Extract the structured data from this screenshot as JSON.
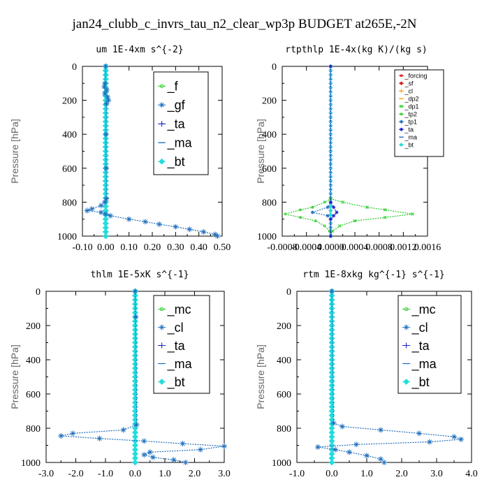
{
  "title": "jan24_clubb_c_invrs_tau_n2_clear_wp3p  BUDGET at265E,-2N",
  "colors": {
    "green": "#22cc22",
    "blue": "#1f6fbf",
    "navy": "#2222cc",
    "cyan": "#22dddd",
    "red": "#dd1111",
    "orange": "#ff9900",
    "olive": "#88aa22"
  },
  "chart_data": [
    {
      "type": "line",
      "title": "um  1E-4xm s^{-2}",
      "ylabel": "Pressure [hPa]",
      "xlim": [
        -0.1,
        0.5
      ],
      "ylim": [
        1000,
        0
      ],
      "xticks": [
        "-0.10",
        "0.00",
        "0.10",
        "0.20",
        "0.30",
        "0.40",
        "0.50"
      ],
      "yticks": [
        "0",
        "200",
        "400",
        "600",
        "800",
        "1000"
      ],
      "legend_position": "top-right",
      "series": [
        {
          "name": "_f",
          "color": "#22cc22",
          "marker": "circle",
          "y": [
            0,
            200,
            400,
            600,
            800,
            900,
            1000
          ],
          "x": [
            0,
            0,
            0,
            0,
            0,
            0,
            0
          ]
        },
        {
          "name": "_gf",
          "color": "#1f6fbf",
          "marker": "star",
          "y": [
            0,
            100,
            120,
            140,
            160,
            180,
            200,
            220,
            400,
            600,
            780,
            800,
            820,
            840,
            850,
            860,
            870,
            880,
            900,
            915,
            930,
            945,
            960,
            975,
            990,
            1000
          ],
          "x": [
            0,
            -0.003,
            -0.006,
            0.005,
            -0.004,
            0.008,
            0.012,
            0.003,
            0.001,
            0.002,
            0.003,
            -0.004,
            -0.02,
            -0.06,
            -0.08,
            -0.02,
            0.0,
            0.02,
            0.1,
            0.17,
            0.23,
            0.3,
            0.36,
            0.42,
            0.47,
            0.48
          ]
        },
        {
          "name": "_ta",
          "color": "#2222cc",
          "marker": "plus",
          "y": [
            0,
            200,
            400,
            600,
            800,
            1000
          ],
          "x": [
            0,
            0,
            0,
            0,
            0,
            0
          ]
        },
        {
          "name": "_ma",
          "color": "#1f6fbf",
          "marker": "dash",
          "y": [
            0,
            200,
            400,
            600,
            800,
            1000
          ],
          "x": [
            0,
            0,
            0,
            0,
            0,
            0
          ]
        },
        {
          "name": "_bt",
          "color": "#22dddd",
          "marker": "diamond",
          "y": [
            0,
            200,
            400,
            600,
            800,
            1000
          ],
          "x": [
            0,
            0,
            0,
            0,
            0,
            0
          ]
        }
      ]
    },
    {
      "type": "line",
      "title": "rtpthlp  1E-4x(kg K)/(kg s)",
      "ylabel": "Pressure [hPa]",
      "xlim": [
        -0.0008,
        0.0016
      ],
      "ylim": [
        1000,
        0
      ],
      "xticks": [
        "-0.0008",
        "-0.0004",
        "0.0000",
        "0.0004",
        "0.0008",
        "0.0012",
        "0.0016"
      ],
      "yticks": [
        "0",
        "200",
        "400",
        "600",
        "800",
        "1000"
      ],
      "legend_position": "top-right",
      "series": [
        {
          "name": "_forcing",
          "color": "#dd1111",
          "marker": "circle",
          "y": [
            0,
            200,
            400,
            600,
            800,
            1000
          ],
          "x": [
            0,
            0,
            0,
            0,
            0,
            0
          ]
        },
        {
          "name": "_sf",
          "color": "#dd1111",
          "marker": "star",
          "y": [
            0,
            200,
            400,
            600,
            800,
            1000
          ],
          "x": [
            0,
            0,
            0,
            0,
            0,
            0
          ]
        },
        {
          "name": "_cl",
          "color": "#ff9900",
          "marker": "plus",
          "y": [
            0,
            200,
            400,
            600,
            800,
            1000
          ],
          "x": [
            0,
            0,
            0,
            0,
            0,
            0
          ]
        },
        {
          "name": "_dp2",
          "color": "#ff9900",
          "marker": "dash",
          "y": [
            0,
            200,
            400,
            600,
            800,
            1000
          ],
          "x": [
            0,
            0,
            0,
            0,
            0,
            0
          ]
        },
        {
          "name": "_dp1",
          "color": "#22cc22",
          "marker": "cross",
          "y": [
            0,
            780,
            800,
            830,
            845,
            870,
            890,
            910,
            940,
            970,
            1000
          ],
          "x": [
            0,
            0,
            0.0002,
            0.0006,
            0.0009,
            0.00135,
            0.0009,
            0.0004,
            0.00015,
            3e-05,
            0
          ]
        },
        {
          "name": "_tp2",
          "color": "#22cc22",
          "marker": "circle",
          "y": [
            0,
            780,
            800,
            830,
            845,
            870,
            890,
            910,
            940,
            970,
            1000
          ],
          "x": [
            0,
            0,
            -0.0001,
            -0.0003,
            -0.0005,
            -0.00075,
            -0.0005,
            -0.00025,
            -0.0001,
            -2e-05,
            0
          ]
        },
        {
          "name": "_tp1",
          "color": "#1f6fbf",
          "marker": "star",
          "y": [
            0,
            800,
            830,
            860,
            880,
            900,
            1000
          ],
          "x": [
            0,
            0,
            -5e-05,
            -0.0003,
            -5e-05,
            0,
            0
          ]
        },
        {
          "name": "_ta",
          "color": "#2222cc",
          "marker": "star",
          "y": [
            0,
            800,
            830,
            860,
            880,
            900,
            1000
          ],
          "x": [
            0,
            0,
            5e-05,
            0.0001,
            5e-05,
            0,
            0
          ]
        },
        {
          "name": "_ma",
          "color": "#1f6fbf",
          "marker": "dash",
          "y": [
            0,
            200,
            400,
            600,
            800,
            1000
          ],
          "x": [
            0,
            0,
            0,
            0,
            0,
            0
          ]
        },
        {
          "name": "_bt",
          "color": "#22dddd",
          "marker": "diamond",
          "y": [
            0,
            200,
            400,
            600,
            800,
            1000
          ],
          "x": [
            0,
            0,
            0,
            0,
            0,
            0
          ]
        }
      ]
    },
    {
      "type": "line",
      "title": "thlm  1E-5xK s^{-1}",
      "ylabel": "Pressure [hPa]",
      "xlim": [
        -3.0,
        3.0
      ],
      "ylim": [
        1000,
        0
      ],
      "xticks": [
        "-3.0",
        "-2.0",
        "-1.0",
        "0.0",
        "1.0",
        "2.0",
        "3.0"
      ],
      "yticks": [
        "0",
        "200",
        "400",
        "600",
        "800",
        "1000"
      ],
      "legend_position": "top-right",
      "series": [
        {
          "name": "_mc",
          "color": "#22cc22",
          "marker": "circle",
          "y": [
            0,
            200,
            400,
            600,
            800,
            900,
            1000
          ],
          "x": [
            0,
            0,
            0,
            0,
            0,
            0,
            0
          ]
        },
        {
          "name": "_cl",
          "color": "#1f6fbf",
          "marker": "star",
          "y": [
            0,
            150,
            780,
            810,
            830,
            845,
            860,
            875,
            890,
            905,
            925,
            940,
            955,
            970,
            985,
            1000
          ],
          "x": [
            0,
            0.02,
            0.05,
            -0.4,
            -2.1,
            -2.5,
            -1.2,
            0.3,
            1.6,
            3.0,
            2.2,
            0.5,
            0.3,
            0.6,
            1.3,
            1.7
          ]
        },
        {
          "name": "_ta",
          "color": "#2222cc",
          "marker": "plus",
          "y": [
            0,
            200,
            400,
            600,
            800,
            1000
          ],
          "x": [
            0,
            0,
            0,
            0,
            0,
            0
          ]
        },
        {
          "name": "_ma",
          "color": "#1f6fbf",
          "marker": "dash",
          "y": [
            0,
            200,
            400,
            600,
            800,
            1000
          ],
          "x": [
            0,
            0,
            0,
            0,
            0,
            0
          ]
        },
        {
          "name": "_bt",
          "color": "#22dddd",
          "marker": "diamond",
          "y": [
            0,
            200,
            400,
            600,
            800,
            1000
          ],
          "x": [
            0,
            0,
            0,
            0,
            0,
            0
          ]
        }
      ]
    },
    {
      "type": "line",
      "title": "rtm  1E-8xkg kg^{-1} s^{-1}",
      "ylabel": "Pressure [hPa]",
      "xlim": [
        -1.0,
        4.0
      ],
      "ylim": [
        1000,
        0
      ],
      "xticks": [
        "-1.0",
        "0.0",
        "1.0",
        "2.0",
        "3.0",
        "4.0"
      ],
      "yticks": [
        "0",
        "200",
        "400",
        "600",
        "800",
        "1000"
      ],
      "legend_position": "top-right",
      "series": [
        {
          "name": "_mc",
          "color": "#22cc22",
          "marker": "circle",
          "y": [
            0,
            200,
            400,
            600,
            800,
            1000
          ],
          "x": [
            0,
            0,
            0,
            0,
            0,
            0
          ]
        },
        {
          "name": "_cl",
          "color": "#1f6fbf",
          "marker": "star",
          "y": [
            0,
            770,
            790,
            810,
            830,
            850,
            865,
            880,
            895,
            910,
            925,
            940,
            960,
            980,
            1000
          ],
          "x": [
            0,
            0.05,
            0.3,
            1.4,
            2.5,
            3.5,
            3.7,
            2.8,
            0.7,
            -0.4,
            0.1,
            0.5,
            1.0,
            1.4,
            1.5
          ]
        },
        {
          "name": "_ta",
          "color": "#2222cc",
          "marker": "plus",
          "y": [
            0,
            200,
            400,
            600,
            800,
            1000
          ],
          "x": [
            0,
            0,
            0,
            0,
            0,
            0
          ]
        },
        {
          "name": "_ma",
          "color": "#1f6fbf",
          "marker": "dash",
          "y": [
            0,
            200,
            400,
            600,
            800,
            1000
          ],
          "x": [
            0,
            0,
            0,
            0,
            0,
            0
          ]
        },
        {
          "name": "_bt",
          "color": "#22dddd",
          "marker": "diamond",
          "y": [
            0,
            200,
            400,
            600,
            800,
            1000
          ],
          "x": [
            0,
            0,
            0,
            0,
            0,
            0
          ]
        }
      ]
    }
  ]
}
